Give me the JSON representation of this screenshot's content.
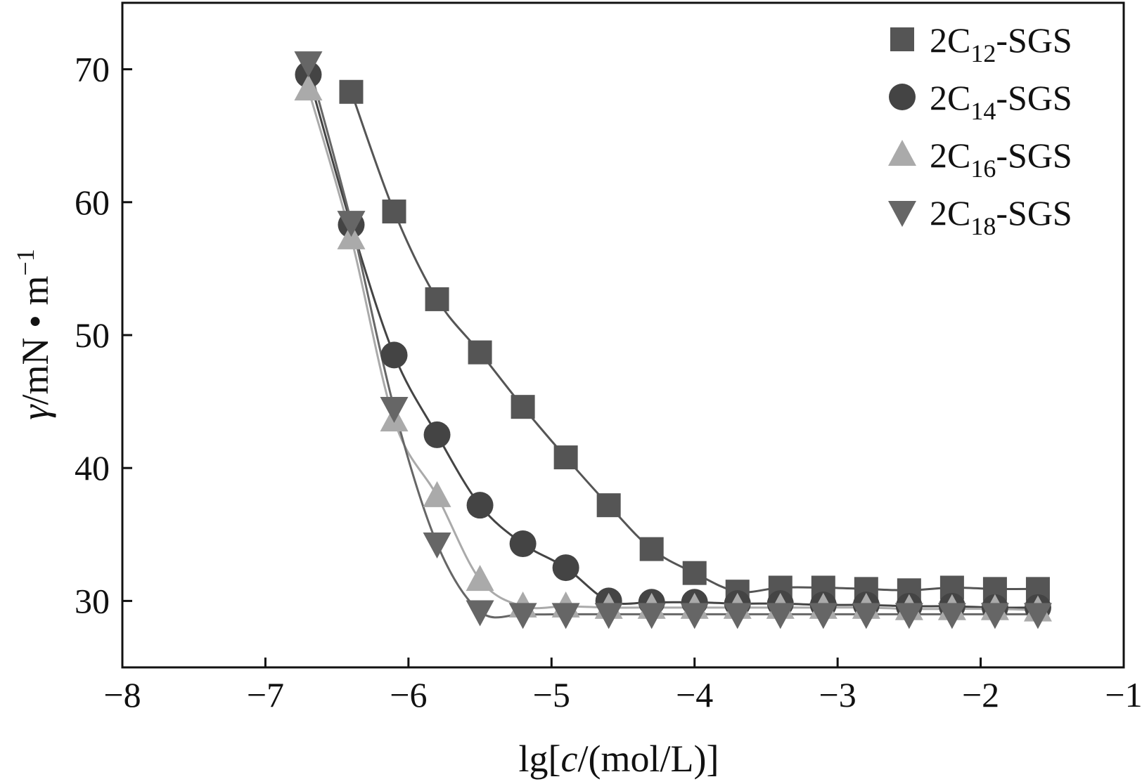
{
  "chart_data": {
    "type": "line",
    "title": "",
    "xlabel_parts": [
      "lg[",
      "c",
      "/(mol/L)]"
    ],
    "ylabel_parts": [
      "γ",
      "/mN • m",
      "−1"
    ],
    "xlim": [
      -8,
      -1
    ],
    "ylim": [
      25,
      75
    ],
    "xticks": [
      -8,
      -7,
      -6,
      -5,
      -4,
      -3,
      -2,
      -1
    ],
    "xtick_labels": [
      "−8",
      "−7",
      "−6",
      "−5",
      "−4",
      "−3",
      "−2",
      "−1"
    ],
    "yticks": [
      30,
      40,
      50,
      60,
      70
    ],
    "ytick_labels": [
      "30",
      "40",
      "50",
      "60",
      "70"
    ],
    "grid": false,
    "legend_position": "top-right",
    "series": [
      {
        "name": "2C12-SGS",
        "legend_prefix": "2C",
        "legend_sub": "12",
        "legend_suffix": "-SGS",
        "marker": "square",
        "color": "#555555",
        "x": [
          -6.4,
          -6.1,
          -5.8,
          -5.5,
          -5.2,
          -4.9,
          -4.6,
          -4.3,
          -4.0,
          -3.7,
          -3.4,
          -3.1,
          -2.8,
          -2.5,
          -2.2,
          -1.9,
          -1.6
        ],
        "y": [
          68.3,
          59.3,
          52.7,
          48.7,
          44.6,
          40.8,
          37.2,
          33.9,
          32.1,
          30.7,
          31.0,
          31.0,
          30.9,
          30.8,
          31.0,
          30.9,
          30.9
        ]
      },
      {
        "name": "2C14-SGS",
        "legend_prefix": "2C",
        "legend_sub": "14",
        "legend_suffix": "-SGS",
        "marker": "circle",
        "color": "#444444",
        "x": [
          -6.7,
          -6.4,
          -6.1,
          -5.8,
          -5.5,
          -5.2,
          -4.9,
          -4.6,
          -4.3,
          -4.0,
          -3.7,
          -3.4,
          -3.1,
          -2.8,
          -2.5,
          -2.2,
          -1.9,
          -1.6
        ],
        "y": [
          69.6,
          58.3,
          48.5,
          42.5,
          37.2,
          34.3,
          32.5,
          30.0,
          29.9,
          29.9,
          29.8,
          29.8,
          29.7,
          29.7,
          29.6,
          29.6,
          29.5,
          29.5
        ]
      },
      {
        "name": "2C16-SGS",
        "legend_prefix": "2C",
        "legend_sub": "16",
        "legend_suffix": "-SGS",
        "marker": "triangle-up",
        "color": "#aaaaaa",
        "x": [
          -6.7,
          -6.4,
          -6.1,
          -5.8,
          -5.5,
          -5.2,
          -4.9,
          -4.6,
          -4.3,
          -4.0,
          -3.7,
          -3.4,
          -3.1,
          -2.8,
          -2.5,
          -2.2,
          -1.9,
          -1.6
        ],
        "y": [
          68.5,
          57.3,
          43.6,
          37.9,
          31.6,
          29.6,
          29.6,
          29.5,
          29.5,
          29.5,
          29.5,
          29.5,
          29.5,
          29.5,
          29.4,
          29.4,
          29.4,
          29.3
        ]
      },
      {
        "name": "2C18-SGS",
        "legend_prefix": "2C",
        "legend_sub": "18",
        "legend_suffix": "-SGS",
        "marker": "triangle-down",
        "color": "#666666",
        "x": [
          -6.7,
          -6.4,
          -6.1,
          -5.8,
          -5.5,
          -5.2,
          -4.9,
          -4.6,
          -4.3,
          -4.0,
          -3.7,
          -3.4,
          -3.1,
          -2.8,
          -2.5,
          -2.2,
          -1.9,
          -1.6
        ],
        "y": [
          70.5,
          58.5,
          44.5,
          34.3,
          29.2,
          29.0,
          29.0,
          29.0,
          29.0,
          29.0,
          29.0,
          29.0,
          29.0,
          29.0,
          29.0,
          29.0,
          29.0,
          29.0
        ]
      }
    ]
  }
}
